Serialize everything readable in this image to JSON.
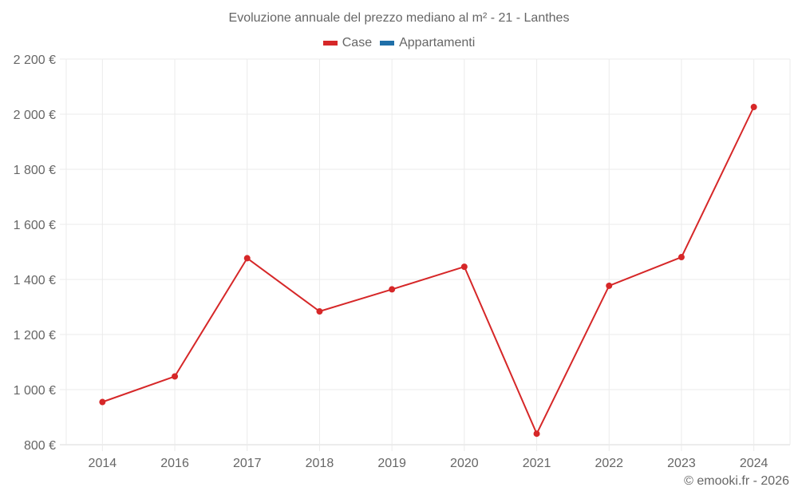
{
  "chart_data": {
    "type": "line",
    "title": "Evoluzione annuale del prezzo mediano al m² - 21 - Lanthes",
    "xlabel": "",
    "ylabel": "",
    "categories": [
      "2014",
      "2016",
      "2017",
      "2018",
      "2019",
      "2020",
      "2021",
      "2022",
      "2023",
      "2024"
    ],
    "series": [
      {
        "name": "Case",
        "color": "#d62728",
        "values": [
          955,
          1048,
          1477,
          1284,
          1364,
          1446,
          840,
          1377,
          1481,
          2026
        ]
      },
      {
        "name": "Appartamenti",
        "color": "#1f6fa8",
        "values": []
      }
    ],
    "ylim": [
      800,
      2200
    ],
    "yticks": [
      800,
      1000,
      1200,
      1400,
      1600,
      1800,
      2000,
      2200
    ],
    "ytick_labels": [
      "800 €",
      "1 000 €",
      "1 200 €",
      "1 400 €",
      "1 600 €",
      "1 800 €",
      "2 000 €",
      "2 200 €"
    ],
    "grid": true,
    "legend_position": "top"
  },
  "legend": [
    {
      "label": "Case",
      "color": "#d62728"
    },
    {
      "label": "Appartamenti",
      "color": "#1f6fa8"
    }
  ],
  "credit": "© emooki.fr - 2026"
}
